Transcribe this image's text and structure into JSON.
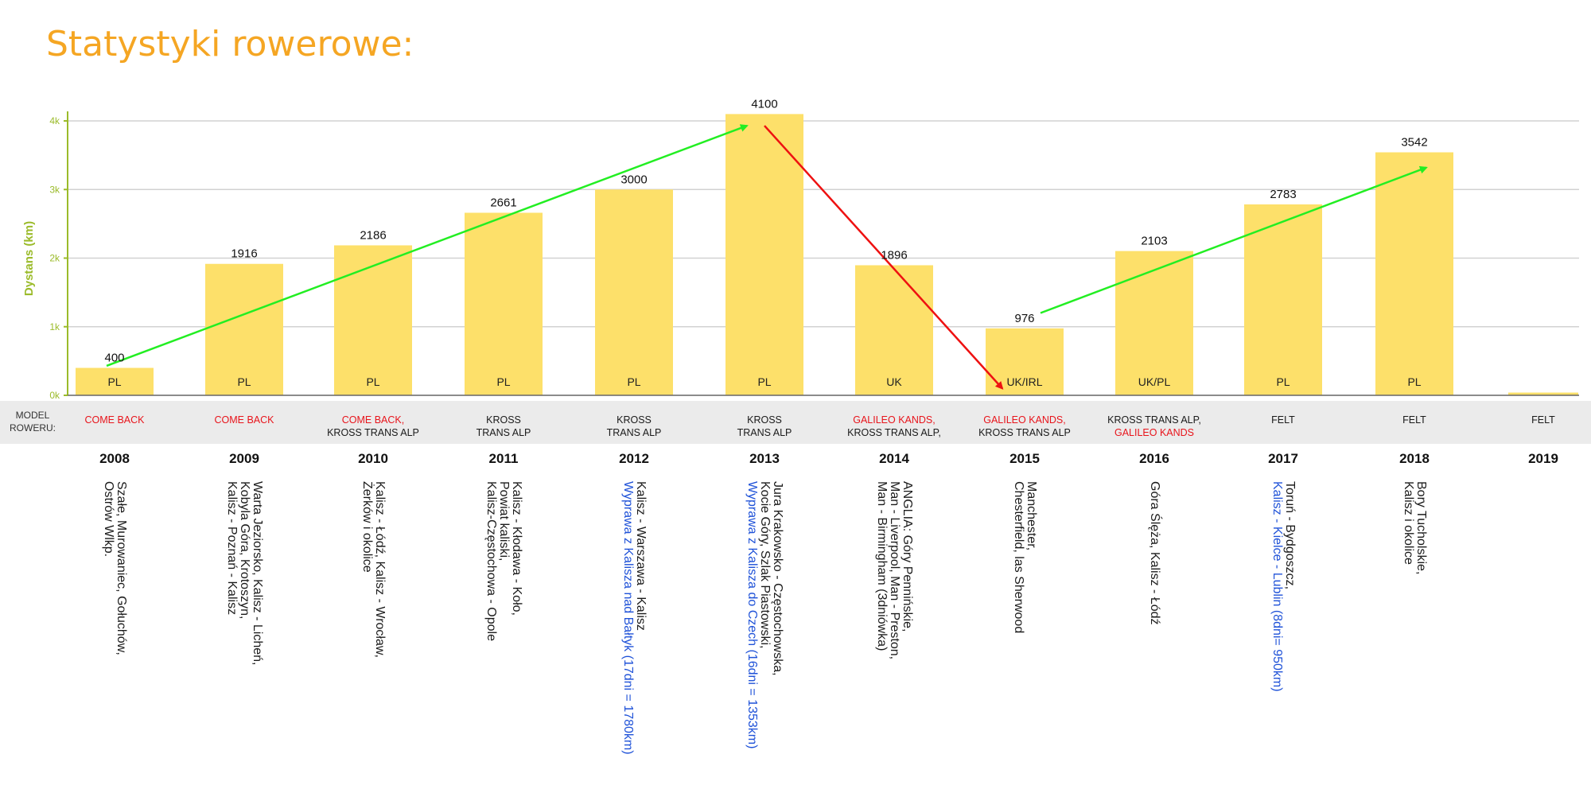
{
  "title": "Statystyki rowerowe:",
  "colors": {
    "bar": "#fde06a",
    "axis": "#9bbb2a",
    "trend_up": "#22ee22",
    "trend_down": "#ee1111",
    "model_red": "#e8141b",
    "model_dark": "#1a1a1a",
    "route_dark": "#1a1a1a",
    "route_blue": "#1f52d8",
    "title": "#f5a623"
  },
  "models_caption": [
    "MODEL",
    "ROWERU:"
  ],
  "chart_data": {
    "type": "bar",
    "ylabel": "Dystans (km)",
    "ylim": [
      0,
      4000
    ],
    "yticks": [
      "0k",
      "1k",
      "2k",
      "3k",
      "4k"
    ],
    "grid": true,
    "categories": [
      "2008",
      "2009",
      "2010",
      "2011",
      "2012",
      "2013",
      "2014",
      "2015",
      "2016",
      "2017",
      "2018",
      "2019"
    ],
    "values": [
      400,
      1916,
      2186,
      2661,
      3000,
      4100,
      1896,
      976,
      2103,
      2783,
      3542,
      40
    ],
    "data_labels": [
      "400",
      "1916",
      "2186",
      "2661",
      "3000",
      "4100",
      "1896",
      "976",
      "2103",
      "2783",
      "3542",
      ""
    ],
    "country_labels": [
      "PL",
      "PL",
      "PL",
      "PL",
      "PL",
      "PL",
      "UK",
      "UK/IRL",
      "UK/PL",
      "PL",
      "PL",
      ""
    ],
    "trend_arrows": [
      {
        "color": "green",
        "from": {
          "x": "2008",
          "y": 430
        },
        "to": {
          "x": "2013",
          "y": 3930
        }
      },
      {
        "color": "red",
        "from": {
          "x": "2013",
          "y": 3930
        },
        "to": {
          "x": "2015",
          "y": 100
        }
      },
      {
        "color": "green",
        "from": {
          "x": "2015",
          "y": 1200
        },
        "to": {
          "x": "2018",
          "y": 3320
        }
      }
    ]
  },
  "years": [
    {
      "year": "2008",
      "model": [
        {
          "text": "COME BACK",
          "color": "red"
        }
      ],
      "routes": [
        {
          "text": "Szałe, Murowaniec, Gołuchów,",
          "color": "dark"
        },
        {
          "text": "Ostrów Wlkp.",
          "color": "dark"
        }
      ]
    },
    {
      "year": "2009",
      "model": [
        {
          "text": "COME BACK",
          "color": "red"
        }
      ],
      "routes": [
        {
          "text": "Warta Jeziorsko, Kalisz - Licheń,",
          "color": "dark"
        },
        {
          "text": "Kobyla Góra, Krotoszyn,",
          "color": "dark"
        },
        {
          "text": "Kalisz - Poznań - Kalisz",
          "color": "dark"
        }
      ]
    },
    {
      "year": "2010",
      "model": [
        {
          "text": "COME BACK,",
          "color": "red"
        },
        {
          "text": "KROSS TRANS ALP",
          "color": "dark"
        }
      ],
      "routes": [
        {
          "text": "Kalisz - Łódź, Kalisz - Wrocław,",
          "color": "dark"
        },
        {
          "text": "Żerków i okolice",
          "color": "dark"
        }
      ]
    },
    {
      "year": "2011",
      "model": [
        {
          "text": "KROSS",
          "color": "dark"
        },
        {
          "text": "TRANS ALP",
          "color": "dark"
        }
      ],
      "routes": [
        {
          "text": "Kalisz - Kłodawa - Koło,",
          "color": "dark"
        },
        {
          "text": "Powiat kaliski,",
          "color": "dark"
        },
        {
          "text": "Kalisz-Częstochowa - Opole",
          "color": "dark"
        }
      ]
    },
    {
      "year": "2012",
      "model": [
        {
          "text": "KROSS",
          "color": "dark"
        },
        {
          "text": "TRANS ALP",
          "color": "dark"
        }
      ],
      "routes": [
        {
          "text": "Kalisz - Warszawa - Kalisz",
          "color": "dark"
        },
        {
          "text": "Wyprawa z Kalisza nad Bałtyk (17dni = 1780km)",
          "color": "blue"
        }
      ]
    },
    {
      "year": "2013",
      "model": [
        {
          "text": "KROSS",
          "color": "dark"
        },
        {
          "text": "TRANS ALP",
          "color": "dark"
        }
      ],
      "routes": [
        {
          "text": "Jura Krakowsko - Częstochowska,",
          "color": "dark"
        },
        {
          "text": "Kocie Góry, Szlak Piastowski,",
          "color": "dark"
        },
        {
          "text": "Wyprawa z Kalisza do Czech (16dni = 1353km)",
          "color": "blue"
        }
      ]
    },
    {
      "year": "2014",
      "model": [
        {
          "text": "GALILEO KANDS,",
          "color": "red"
        },
        {
          "text": "KROSS TRANS ALP,",
          "color": "dark"
        }
      ],
      "routes": [
        {
          "text": "ANGLIA: Góry Pennińskie,",
          "color": "dark"
        },
        {
          "text": "Man - Liverpool, Man - Preston,",
          "color": "dark"
        },
        {
          "text": "Man - Birmingham (3dniówka)",
          "color": "dark"
        }
      ]
    },
    {
      "year": "2015",
      "model": [
        {
          "text": "GALILEO KANDS,",
          "color": "red"
        },
        {
          "text": "KROSS TRANS ALP",
          "color": "dark"
        }
      ],
      "routes": [
        {
          "text": "Manchester,",
          "color": "dark"
        },
        {
          "text": "Chesterfield, las Sherwood",
          "color": "dark"
        }
      ]
    },
    {
      "year": "2016",
      "model": [
        {
          "text": "KROSS TRANS ALP,",
          "color": "dark"
        },
        {
          "text": "GALILEO KANDS",
          "color": "red"
        }
      ],
      "routes": [
        {
          "text": "Góra Ślęża, Kalisz - Łódź",
          "color": "dark"
        }
      ]
    },
    {
      "year": "2017",
      "model": [
        {
          "text": "FELT",
          "color": "dark"
        }
      ],
      "routes": [
        {
          "text": "Toruń - Bydgoszcz,",
          "color": "dark"
        },
        {
          "text": "Kalisz - Kielce - Lublin (8dni= 950km)",
          "color": "blue"
        }
      ]
    },
    {
      "year": "2018",
      "model": [
        {
          "text": "FELT",
          "color": "dark"
        }
      ],
      "routes": [
        {
          "text": "Bory Tucholskie,",
          "color": "dark"
        },
        {
          "text": "Kalisz i okolice",
          "color": "dark"
        }
      ]
    },
    {
      "year": "2019",
      "model": [
        {
          "text": "FELT",
          "color": "dark"
        }
      ],
      "routes": []
    }
  ]
}
